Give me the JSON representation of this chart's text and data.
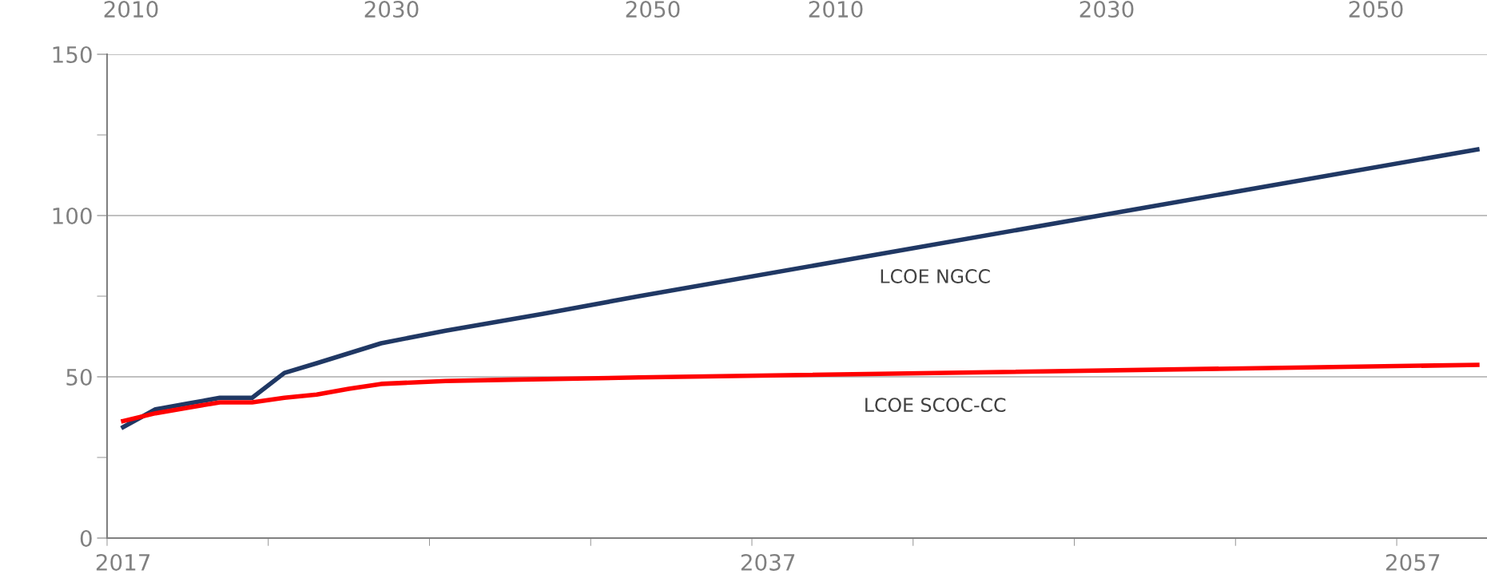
{
  "chart_data": {
    "type": "line",
    "annotations": [
      "2010",
      "2030",
      "2050",
      "2010",
      "2030",
      "2050"
    ],
    "series": [
      {
        "name": "LCOE NGCC",
        "color": "#203864",
        "x": [
          2017,
          2018,
          2019,
          2020,
          2021,
          2022,
          2023,
          2024,
          2025,
          2027,
          2030,
          2033,
          2059
        ],
        "values": [
          34.4,
          39.9,
          41.7,
          43.5,
          43.5,
          51.2,
          54.2,
          57.3,
          60.4,
          64.3,
          69.5,
          75.0,
          120.5
        ]
      },
      {
        "name": "LCOE SCOC-CC",
        "color": "#ff0000",
        "x": [
          2017,
          2018,
          2019,
          2020,
          2021,
          2022,
          2023,
          2024,
          2025,
          2027,
          2029,
          2033,
          2059
        ],
        "values": [
          36.3,
          38.7,
          40.4,
          42.1,
          42.1,
          43.5,
          44.5,
          46.3,
          47.8,
          48.7,
          49.1,
          49.8,
          53.7
        ]
      }
    ],
    "xlim": [
      2016.5,
      2059.3
    ],
    "xticks": [
      {
        "value": 2016.5,
        "label": null
      },
      {
        "value": 2021.5,
        "label": null
      },
      {
        "value": 2026.5,
        "label": null
      },
      {
        "value": 2031.5,
        "label": null
      },
      {
        "value": 2036.5,
        "label": null
      },
      {
        "value": 2041.5,
        "label": null
      },
      {
        "value": 2046.5,
        "label": null
      },
      {
        "value": 2051.5,
        "label": null
      },
      {
        "value": 2056.5,
        "label": null
      },
      2017,
      2037,
      2057
    ],
    "ylim": [
      0,
      150
    ],
    "yticks": [
      0,
      {
        "value": 25,
        "label": null
      },
      50,
      {
        "value": 75,
        "label": null
      },
      100,
      {
        "value": 125,
        "label": null
      },
      150
    ],
    "grid": "y",
    "marker": "none",
    "line_style": "solid",
    "legend": false
  }
}
